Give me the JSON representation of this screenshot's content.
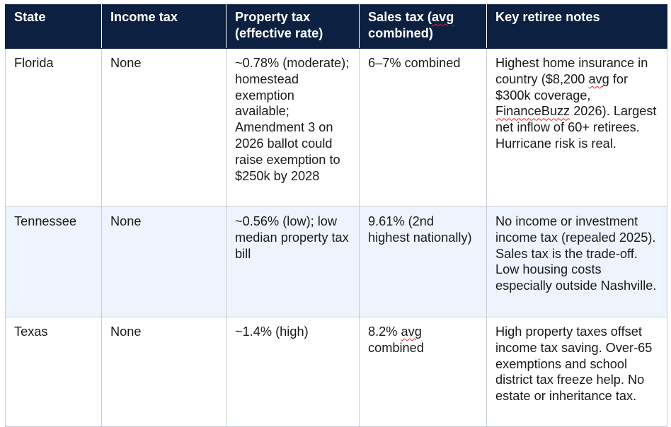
{
  "table": {
    "headers": [
      "State",
      "Income tax",
      "Property tax (effective rate)",
      "Sales tax (avg combined)",
      "Key retiree notes"
    ],
    "rows": [
      {
        "state": "Florida",
        "income_tax": "None",
        "property_tax": "~0.78% (moderate); homestead exemption available; Amendment 3 on 2026 ballot could raise exemption to $250k by 2028",
        "sales_tax": "6–7% combined",
        "notes": "Highest home insurance in country ($8,200 avg for $300k coverage, FinanceBuzz 2026). Largest net inflow of 60+ retirees. Hurricane risk is real."
      },
      {
        "state": "Tennessee",
        "income_tax": "None",
        "property_tax": "~0.56% (low); low median property tax bill",
        "sales_tax": "9.61% (2nd highest nationally)",
        "notes": "No income or investment income tax (repealed 2025). Sales tax is the trade-off. Low housing costs especially outside Nashville."
      },
      {
        "state": "Texas",
        "income_tax": "None",
        "property_tax": "~1.4% (high)",
        "sales_tax": "8.2% avg combined",
        "notes": "High property taxes offset income tax saving. Over-65 exemptions and school district tax freeze help. No estate or inheritance tax."
      }
    ]
  },
  "colors": {
    "header_bg": "#0c2142",
    "header_text": "#ffffff",
    "alt_row_bg": "#eef4fd",
    "border": "#c8ccd4"
  }
}
